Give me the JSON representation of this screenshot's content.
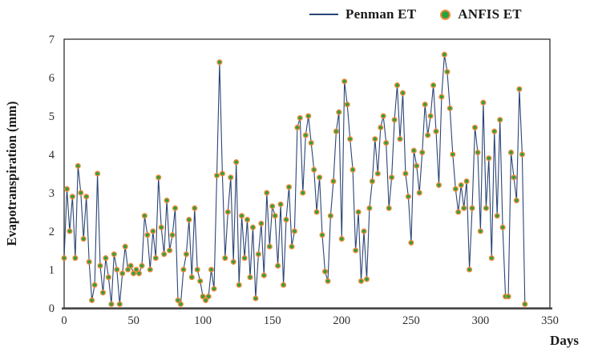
{
  "chart_data": {
    "type": "line+scatter",
    "title": "",
    "xlabel": "Days",
    "ylabel": "Evapotranspiration (mm)",
    "xlim": [
      0,
      350
    ],
    "ylim": [
      0,
      7
    ],
    "x_ticks": [
      0,
      50,
      100,
      150,
      200,
      250,
      300,
      350
    ],
    "y_ticks": [
      0,
      1,
      2,
      3,
      4,
      5,
      6,
      7
    ],
    "grid": false,
    "legend_position": "top",
    "axis_color": "#3c3c3c",
    "x": [
      0,
      2,
      4,
      6,
      8,
      10,
      12,
      14,
      16,
      18,
      20,
      22,
      24,
      26,
      28,
      30,
      32,
      34,
      36,
      38,
      40,
      42,
      44,
      46,
      48,
      50,
      52,
      54,
      56,
      58,
      60,
      62,
      64,
      66,
      68,
      70,
      72,
      74,
      76,
      78,
      80,
      82,
      84,
      86,
      88,
      90,
      92,
      94,
      96,
      98,
      100,
      102,
      104,
      106,
      108,
      110,
      112,
      114,
      116,
      118,
      120,
      122,
      124,
      126,
      128,
      130,
      132,
      134,
      136,
      138,
      140,
      142,
      144,
      146,
      148,
      150,
      152,
      154,
      156,
      158,
      160,
      162,
      164,
      166,
      168,
      170,
      172,
      174,
      176,
      178,
      180,
      182,
      184,
      186,
      188,
      190,
      192,
      194,
      196,
      198,
      200,
      202,
      204,
      206,
      208,
      210,
      212,
      214,
      216,
      218,
      220,
      222,
      224,
      226,
      228,
      230,
      232,
      234,
      236,
      238,
      240,
      242,
      244,
      246,
      248,
      250,
      252,
      254,
      256,
      258,
      260,
      262,
      264,
      266,
      268,
      270,
      272,
      274,
      276,
      278,
      280,
      282,
      284,
      286,
      288,
      290,
      292,
      294,
      296,
      298,
      300,
      302,
      304,
      306,
      308,
      310,
      312,
      314,
      316,
      318,
      320,
      322,
      324,
      326,
      328,
      330,
      332
    ],
    "series": [
      {
        "name": "Penman ET",
        "type": "line",
        "color": "#2b4575",
        "values": [
          1.3,
          3.1,
          2.0,
          2.9,
          1.3,
          3.7,
          3.0,
          1.8,
          2.9,
          1.2,
          0.2,
          0.6,
          3.5,
          1.1,
          0.4,
          1.3,
          0.8,
          0.1,
          1.4,
          1.0,
          0.1,
          0.9,
          1.6,
          1.0,
          1.1,
          0.9,
          1.0,
          0.9,
          1.1,
          2.4,
          1.9,
          1.0,
          2.0,
          1.3,
          3.4,
          2.1,
          1.4,
          2.8,
          1.5,
          1.9,
          2.6,
          0.2,
          0.1,
          1.0,
          1.4,
          2.3,
          0.8,
          2.6,
          1.0,
          0.7,
          0.3,
          0.2,
          0.3,
          1.0,
          0.5,
          3.45,
          6.4,
          3.5,
          1.3,
          2.5,
          3.4,
          1.2,
          3.8,
          0.6,
          2.4,
          1.3,
          2.3,
          0.8,
          2.1,
          0.25,
          1.4,
          2.2,
          0.85,
          3.0,
          1.6,
          2.65,
          2.4,
          1.1,
          2.7,
          0.6,
          2.3,
          3.15,
          1.6,
          2.0,
          4.7,
          4.95,
          3.0,
          4.5,
          5.0,
          4.3,
          3.6,
          2.5,
          3.4,
          1.9,
          0.95,
          0.7,
          2.4,
          3.3,
          4.6,
          5.1,
          1.8,
          5.9,
          5.3,
          4.4,
          3.6,
          1.5,
          2.5,
          0.7,
          2.0,
          0.75,
          2.6,
          3.3,
          4.4,
          3.5,
          4.7,
          5.0,
          4.3,
          2.6,
          3.4,
          4.9,
          5.8,
          4.4,
          5.6,
          3.5,
          2.9,
          1.7,
          4.1,
          3.7,
          3.0,
          4.05,
          5.3,
          4.5,
          5.0,
          5.8,
          4.6,
          3.2,
          5.5,
          6.6,
          6.15,
          5.2,
          4.0,
          3.1,
          2.5,
          3.2,
          2.6,
          3.3,
          1.0,
          2.6,
          4.7,
          4.05,
          2.0,
          5.35,
          2.6,
          3.9,
          1.3,
          4.6,
          2.4,
          4.9,
          2.1,
          0.3,
          0.3,
          4.05,
          3.4,
          2.8,
          5.7,
          4.0,
          0.1
        ]
      },
      {
        "name": "ANFIS ET",
        "type": "scatter",
        "marker_fill": "#27a23e",
        "marker_edge": "#ee8a38",
        "values": [
          1.3,
          3.1,
          2.0,
          2.9,
          1.3,
          3.7,
          3.0,
          1.8,
          2.9,
          1.2,
          0.2,
          0.6,
          3.5,
          1.1,
          0.4,
          1.3,
          0.8,
          0.1,
          1.4,
          1.0,
          0.1,
          0.9,
          1.6,
          1.0,
          1.1,
          0.9,
          1.0,
          0.9,
          1.1,
          2.4,
          1.9,
          1.0,
          2.0,
          1.3,
          3.4,
          2.1,
          1.4,
          2.8,
          1.5,
          1.9,
          2.6,
          0.2,
          0.1,
          1.0,
          1.4,
          2.3,
          0.8,
          2.6,
          1.0,
          0.7,
          0.3,
          0.2,
          0.3,
          1.0,
          0.5,
          3.45,
          6.4,
          3.5,
          1.3,
          2.5,
          3.4,
          1.2,
          3.8,
          0.6,
          2.4,
          1.3,
          2.3,
          0.8,
          2.1,
          0.25,
          1.4,
          2.2,
          0.85,
          3.0,
          1.6,
          2.65,
          2.4,
          1.1,
          2.7,
          0.6,
          2.3,
          3.15,
          1.6,
          2.0,
          4.7,
          4.95,
          3.0,
          4.5,
          5.0,
          4.3,
          3.6,
          2.5,
          3.4,
          1.9,
          0.95,
          0.7,
          2.4,
          3.3,
          4.6,
          5.1,
          1.8,
          5.9,
          5.3,
          4.4,
          3.6,
          1.5,
          2.5,
          0.7,
          2.0,
          0.75,
          2.6,
          3.3,
          4.4,
          3.5,
          4.7,
          5.0,
          4.3,
          2.6,
          3.4,
          4.9,
          5.8,
          4.4,
          5.6,
          3.5,
          2.9,
          1.7,
          4.1,
          3.7,
          3.0,
          4.05,
          5.3,
          4.5,
          5.0,
          5.8,
          4.6,
          3.2,
          5.5,
          6.6,
          6.15,
          5.2,
          4.0,
          3.1,
          2.5,
          3.2,
          2.6,
          3.3,
          1.0,
          2.6,
          4.7,
          4.05,
          2.0,
          5.35,
          2.6,
          3.9,
          1.3,
          4.6,
          2.4,
          4.9,
          2.1,
          0.3,
          0.3,
          4.05,
          3.4,
          2.8,
          5.7,
          4.0,
          0.1
        ]
      }
    ]
  }
}
